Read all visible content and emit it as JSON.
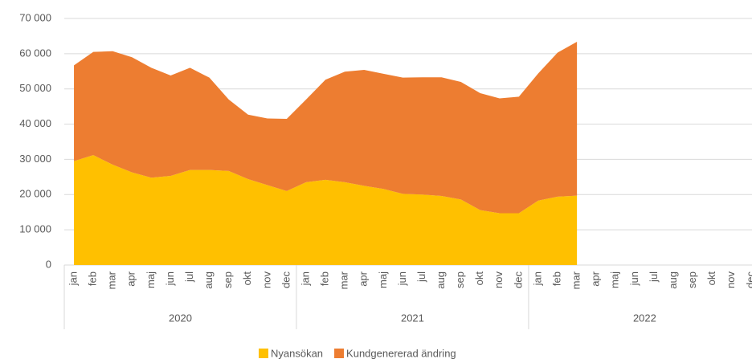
{
  "chart_data": {
    "type": "stacked-area",
    "categories": [
      "jan",
      "feb",
      "mar",
      "apr",
      "maj",
      "jun",
      "jul",
      "aug",
      "sep",
      "okt",
      "nov",
      "dec",
      "jan",
      "feb",
      "mar",
      "apr",
      "maj",
      "jun",
      "jul",
      "aug",
      "sep",
      "okt",
      "nov",
      "dec",
      "jan",
      "feb",
      "mar",
      "apr",
      "maj",
      "jun",
      "jul",
      "aug",
      "sep",
      "okt",
      "nov",
      "dec"
    ],
    "groups": [
      {
        "label": "2020",
        "count": 12
      },
      {
        "label": "2021",
        "count": 12
      },
      {
        "label": "2022",
        "count": 12
      }
    ],
    "series": [
      {
        "name": "Nyansökan",
        "color": "#ffc000",
        "values": [
          29500,
          31200,
          28500,
          26300,
          24800,
          25300,
          27000,
          27000,
          26700,
          24400,
          22700,
          21000,
          23500,
          24200,
          23500,
          22500,
          21600,
          20200,
          20000,
          19600,
          18600,
          15600,
          14700,
          14700,
          18300,
          19400,
          19700,
          null,
          null,
          null,
          null,
          null,
          null,
          null,
          null,
          null
        ]
      },
      {
        "name": "Kundgenererad ändring",
        "color": "#ed7d31",
        "values": [
          27200,
          29300,
          32200,
          32700,
          31200,
          28500,
          29000,
          26200,
          20300,
          18300,
          18900,
          20500,
          23500,
          28400,
          31400,
          32900,
          32700,
          33000,
          33300,
          33700,
          33400,
          33200,
          32600,
          33100,
          36100,
          40900,
          43700,
          null,
          null,
          null,
          null,
          null,
          null,
          null,
          null,
          null
        ]
      }
    ],
    "ylim": [
      0,
      70000
    ],
    "yticks": [
      0,
      {
        "value": 10000,
        "label": "10 000"
      },
      {
        "value": 20000,
        "label": "20 000"
      },
      {
        "value": 30000,
        "label": "30 000"
      },
      {
        "value": 40000,
        "label": "40 000"
      },
      {
        "value": 50000,
        "label": "50 000"
      },
      {
        "value": 60000,
        "label": "60 000"
      },
      {
        "value": 70000,
        "label": "70 000"
      }
    ],
    "grid": true,
    "legend": "bottom"
  }
}
